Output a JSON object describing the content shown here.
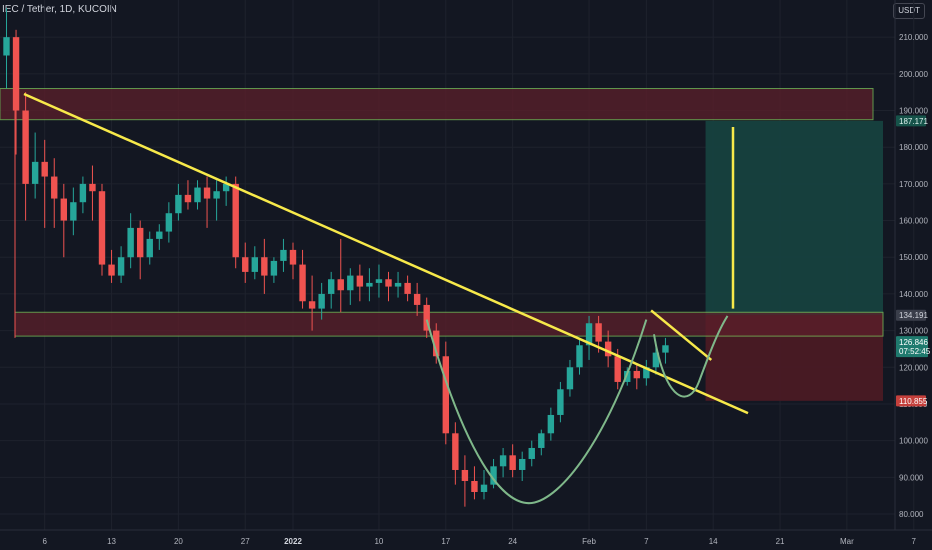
{
  "header": {
    "title": "IEC / Tether, 1D, KUCOIN",
    "currency": "USDT"
  },
  "colors": {
    "background": "#131722",
    "up": "#26a69a",
    "down": "#ef5350",
    "trendline": "#f7e94a",
    "zone_fill": "#5c1f2a",
    "zone_border": "#7cc35a",
    "target_fill": "#16413f",
    "stop_fill": "#4a1a24",
    "cup_curve": "#7fb88a"
  },
  "chart_data": {
    "type": "candlestick",
    "ylim": [
      77,
      218
    ],
    "y_ticks": [
      "80.000",
      "90.000",
      "100.000",
      "110.000",
      "120.000",
      "130.000",
      "140.000",
      "150.000",
      "160.000",
      "170.000",
      "180.000",
      "190.000",
      "200.000",
      "210.000"
    ],
    "x_ticks": [
      {
        "idx": 4,
        "label": "6",
        "bold": false
      },
      {
        "idx": 11,
        "label": "13",
        "bold": false
      },
      {
        "idx": 18,
        "label": "20",
        "bold": false
      },
      {
        "idx": 25,
        "label": "27",
        "bold": false
      },
      {
        "idx": 30,
        "label": "2022",
        "bold": true
      },
      {
        "idx": 39,
        "label": "10",
        "bold": false
      },
      {
        "idx": 46,
        "label": "17",
        "bold": false
      },
      {
        "idx": 53,
        "label": "24",
        "bold": false
      },
      {
        "idx": 61,
        "label": "Feb",
        "bold": false
      },
      {
        "idx": 67,
        "label": "7",
        "bold": false
      },
      {
        "idx": 74,
        "label": "14",
        "bold": false
      },
      {
        "idx": 81,
        "label": "21",
        "bold": false
      },
      {
        "idx": 88,
        "label": "Mar",
        "bold": false
      },
      {
        "idx": 95,
        "label": "7",
        "bold": false
      }
    ],
    "candles": [
      [
        205,
        218,
        210,
        196
      ],
      [
        210,
        212,
        190,
        178
      ],
      [
        190,
        195,
        170,
        160
      ],
      [
        170,
        184,
        176,
        166
      ],
      [
        176,
        182,
        172,
        158
      ],
      [
        172,
        177,
        166,
        158
      ],
      [
        166,
        170,
        160,
        150
      ],
      [
        160,
        169,
        165,
        156
      ],
      [
        165,
        172,
        170,
        162
      ],
      [
        170,
        175,
        168,
        160
      ],
      [
        168,
        170,
        148,
        145
      ],
      [
        148,
        152,
        145,
        143
      ],
      [
        145,
        153,
        150,
        143
      ],
      [
        150,
        162,
        158,
        147
      ],
      [
        158,
        160,
        150,
        144
      ],
      [
        150,
        157,
        155,
        148
      ],
      [
        155,
        159,
        157,
        152
      ],
      [
        157,
        165,
        162,
        154
      ],
      [
        162,
        170,
        167,
        160
      ],
      [
        167,
        171,
        165,
        163
      ],
      [
        165,
        171,
        169,
        163
      ],
      [
        169,
        172,
        166,
        158
      ],
      [
        166,
        171,
        168,
        160
      ],
      [
        168,
        172,
        170,
        164
      ],
      [
        170,
        172,
        150,
        147
      ],
      [
        150,
        154,
        146,
        143
      ],
      [
        146,
        153,
        150,
        144
      ],
      [
        150,
        155,
        145,
        140
      ],
      [
        145,
        150,
        149,
        143
      ],
      [
        149,
        155,
        152,
        146
      ],
      [
        152,
        154,
        148,
        144
      ],
      [
        148,
        152,
        138,
        136
      ],
      [
        138,
        145,
        136,
        130
      ],
      [
        136,
        143,
        140,
        133
      ],
      [
        140,
        146,
        144,
        136
      ],
      [
        144,
        155,
        141,
        135
      ],
      [
        141,
        147,
        145,
        137
      ],
      [
        145,
        148,
        142,
        138
      ],
      [
        142,
        147,
        143,
        138
      ],
      [
        143,
        148,
        144,
        139
      ],
      [
        144,
        146,
        142,
        138
      ],
      [
        142,
        146,
        143,
        139
      ],
      [
        143,
        145,
        140,
        138
      ],
      [
        140,
        143,
        137,
        134
      ],
      [
        137,
        139,
        130,
        128
      ],
      [
        130,
        132,
        123,
        121
      ],
      [
        123,
        127,
        102,
        99
      ],
      [
        102,
        105,
        92,
        88
      ],
      [
        92,
        96,
        89,
        82
      ],
      [
        89,
        93,
        86,
        84
      ],
      [
        86,
        92,
        88,
        84
      ],
      [
        88,
        95,
        93,
        87
      ],
      [
        93,
        98,
        96,
        90
      ],
      [
        96,
        99,
        92,
        90
      ],
      [
        92,
        97,
        95,
        89
      ],
      [
        95,
        100,
        98,
        93
      ],
      [
        98,
        103,
        102,
        96
      ],
      [
        102,
        109,
        107,
        100
      ],
      [
        107,
        116,
        114,
        105
      ],
      [
        114,
        122,
        120,
        112
      ],
      [
        120,
        128,
        126,
        118
      ],
      [
        126,
        134,
        132,
        122
      ],
      [
        132,
        134,
        127,
        124
      ],
      [
        127,
        130,
        123,
        120
      ],
      [
        123,
        125,
        116,
        114
      ],
      [
        116,
        120,
        119,
        115
      ],
      [
        119,
        121,
        117,
        114
      ],
      [
        117,
        122,
        120,
        115
      ],
      [
        120,
        127,
        124,
        118
      ],
      [
        124,
        128,
        126,
        121
      ]
    ],
    "candle_x_offset": 0,
    "last_price": "126.846",
    "countdown": "07:52:45",
    "price_labels": {
      "target": "187.171",
      "entry": "134.191",
      "stop": "110.855"
    },
    "levels": {
      "target": 187.171,
      "entry": 134.191,
      "stop": 110.855
    }
  }
}
